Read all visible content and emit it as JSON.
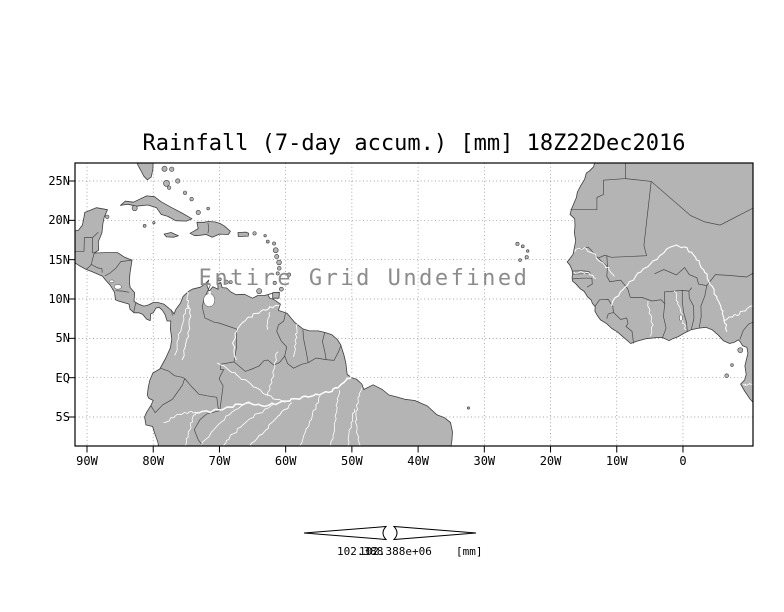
{
  "title": "Rainfall (7-day accum.) [mm] 18Z22Dec2016",
  "overlay_message": "Entire Grid Undefined",
  "axes": {
    "y_labels": [
      {
        "label": "25N",
        "lat": 25
      },
      {
        "label": "20N",
        "lat": 20
      },
      {
        "label": "15N",
        "lat": 15
      },
      {
        "label": "10N",
        "lat": 10
      },
      {
        "label": "5N",
        "lat": 5
      },
      {
        "label": "EQ",
        "lat": 0
      },
      {
        "label": "5S",
        "lat": -5
      }
    ],
    "x_labels": [
      {
        "label": "90W",
        "lon": -90
      },
      {
        "label": "80W",
        "lon": -80
      },
      {
        "label": "70W",
        "lon": -70
      },
      {
        "label": "60W",
        "lon": -60
      },
      {
        "label": "50W",
        "lon": -50
      },
      {
        "label": "40W",
        "lon": -40
      },
      {
        "label": "30W",
        "lon": -30
      },
      {
        "label": "20W",
        "lon": -20
      },
      {
        "label": "10W",
        "lon": -10
      },
      {
        "label": "0",
        "lon": 0
      }
    ]
  },
  "colorbar": {
    "min_label": "102.388",
    "max_label": "102.388e+06",
    "units": "[mm]"
  },
  "colors": {
    "background": "#ffffff",
    "land": "#b4b4b4",
    "coastline": "#3d3d3d",
    "border": "#4a4a4a",
    "river": "#ffffff",
    "grid": "#858585",
    "frame": "#000000",
    "overlay_text": "#8c8c8c"
  }
}
